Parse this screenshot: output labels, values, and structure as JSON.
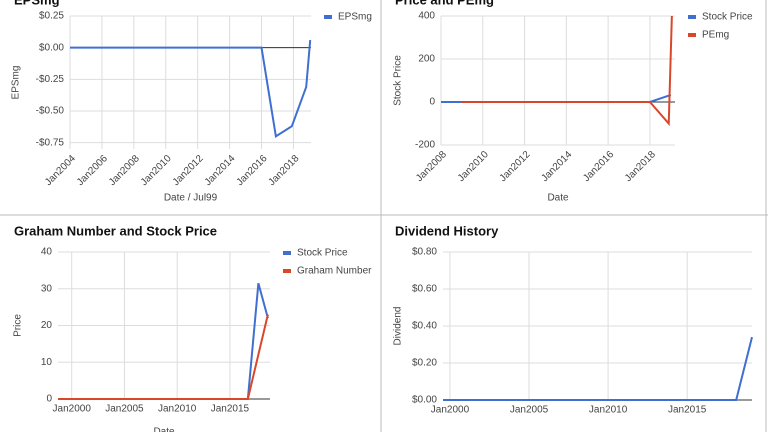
{
  "chart_data": [
    {
      "type": "line",
      "title": "EPSmg",
      "x_label": "Date / Jul99",
      "y_label": "EPSmg",
      "legend": "right",
      "grid": true,
      "rotate_x_labels": true,
      "xlim": [
        2004,
        2019.1
      ],
      "xticks": [
        {
          "value": 2004,
          "label": "Jan2004"
        },
        {
          "value": 2006,
          "label": "Jan2006"
        },
        {
          "value": 2008,
          "label": "Jan2008"
        },
        {
          "value": 2010,
          "label": "Jan2010"
        },
        {
          "value": 2012,
          "label": "Jan2012"
        },
        {
          "value": 2014,
          "label": "Jan2014"
        },
        {
          "value": 2016,
          "label": "Jan2016"
        },
        {
          "value": 2018,
          "label": "Jan2018"
        }
      ],
      "ylim": [
        -0.8,
        0.25
      ],
      "yticks": [
        {
          "value": 0.25,
          "label": "$0.25"
        },
        {
          "value": 0,
          "label": "$0.00"
        },
        {
          "value": -0.25,
          "label": "-$0.25"
        },
        {
          "value": -0.5,
          "label": "-$0.50"
        },
        {
          "value": -0.75,
          "label": "-$0.75"
        }
      ],
      "series": [
        {
          "name": "EPSmg",
          "color": "#3f6fd1",
          "x": [
            2004,
            2016,
            2016.9,
            2017.9,
            2018.8,
            2019.05
          ],
          "values": [
            0,
            0,
            -0.7,
            -0.62,
            -0.31,
            0.06
          ]
        }
      ]
    },
    {
      "type": "line",
      "title": "Price and PEmg",
      "x_label": "Date",
      "y_label": "Stock Price",
      "legend": "right",
      "grid": true,
      "rotate_x_labels": true,
      "xlim": [
        2008,
        2019.2
      ],
      "xticks": [
        {
          "value": 2008,
          "label": "Jan2008"
        },
        {
          "value": 2010,
          "label": "Jan2010"
        },
        {
          "value": 2012,
          "label": "Jan2012"
        },
        {
          "value": 2014,
          "label": "Jan2014"
        },
        {
          "value": 2016,
          "label": "Jan2016"
        },
        {
          "value": 2018,
          "label": "Jan2018"
        }
      ],
      "ylim": [
        -200,
        400
      ],
      "yticks": [
        400,
        200,
        0,
        -200
      ],
      "series": [
        {
          "name": "Stock Price",
          "color": "#3f6fd1",
          "x": [
            2008,
            2018,
            2019
          ],
          "values": [
            0,
            0,
            33
          ]
        },
        {
          "name": "PEmg",
          "color": "#d9472b",
          "x": [
            2009,
            2018,
            2018.9,
            2019.05
          ],
          "values": [
            0,
            0,
            -100,
            400
          ]
        }
      ]
    },
    {
      "type": "line",
      "title": "Graham Number and Stock Price",
      "x_label": "Date",
      "y_label": "Price",
      "legend": "right",
      "grid": true,
      "rotate_x_labels": false,
      "xlim": [
        1998.7,
        2018.8
      ],
      "xticks": [
        {
          "value": 2000,
          "label": "Jan2000"
        },
        {
          "value": 2005,
          "label": "Jan2005"
        },
        {
          "value": 2010,
          "label": "Jan2010"
        },
        {
          "value": 2015,
          "label": "Jan2015"
        }
      ],
      "ylim": [
        0,
        40
      ],
      "yticks": [
        40,
        30,
        20,
        10,
        0
      ],
      "series": [
        {
          "name": "Stock Price",
          "color": "#3f6fd1",
          "x": [
            1998.7,
            2016.7,
            2017.7,
            2018.6
          ],
          "values": [
            0,
            0,
            31.5,
            22
          ]
        },
        {
          "name": "Graham Number",
          "color": "#d9472b",
          "x": [
            1998.7,
            2016.7,
            2018.6
          ],
          "values": [
            0,
            0,
            23
          ]
        }
      ]
    },
    {
      "type": "line",
      "title": "Dividend History",
      "y_label": "Dividend",
      "grid": true,
      "rotate_x_labels": false,
      "xlim": [
        1999.56,
        2019.1
      ],
      "xticks": [
        {
          "value": 2000,
          "label": "Jan2000"
        },
        {
          "value": 2005,
          "label": "Jan2005"
        },
        {
          "value": 2010,
          "label": "Jan2010"
        },
        {
          "value": 2015,
          "label": "Jan2015"
        }
      ],
      "ylim": [
        0,
        0.8
      ],
      "yticks": [
        {
          "value": 0.8,
          "label": "$0.80"
        },
        {
          "value": 0.6,
          "label": "$0.60"
        },
        {
          "value": 0.4,
          "label": "$0.40"
        },
        {
          "value": 0.2,
          "label": "$0.20"
        },
        {
          "value": 0,
          "label": "$0.00"
        }
      ],
      "series": [
        {
          "color": "#3f6fd1",
          "x": [
            1999.56,
            2018.1,
            2019.1
          ],
          "values": [
            0,
            0,
            0.34
          ]
        }
      ]
    }
  ]
}
